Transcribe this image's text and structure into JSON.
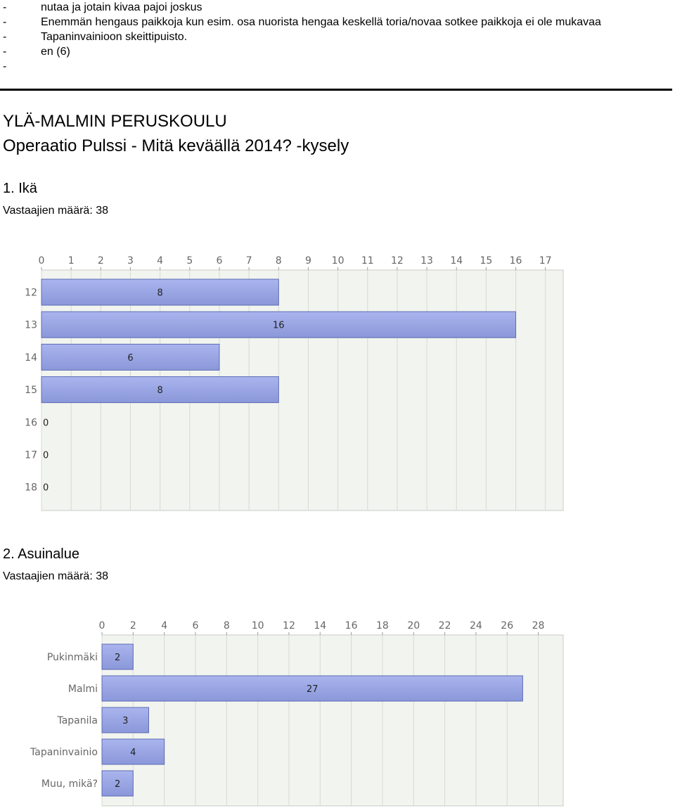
{
  "bullets": [
    {
      "dash": "-",
      "text": "nutaa ja jotain kivaa pajoi joskus"
    },
    {
      "dash": "-",
      "text": "Enemmän hengaus paikkoja kun esim. osa nuorista hengaa keskellä toria/novaa sotkee paikkoja ei ole mukavaa"
    },
    {
      "dash": "-",
      "text": "Tapaninvainioon skeittipuisto."
    },
    {
      "dash": "-",
      "text": "en (6)"
    },
    {
      "dash": "-",
      "text": ""
    }
  ],
  "school_name": "YLÄ-MALMIN PERUSKOULU",
  "survey_title": "Operaatio Pulssi - Mitä keväällä 2014? -kysely",
  "questions": [
    {
      "title": "1. Ikä",
      "respondents": "Vastaajien määrä: 38"
    },
    {
      "title": "2. Asuinalue",
      "respondents": "Vastaajien määrä: 38"
    }
  ],
  "colors": {
    "bar_fill": "#8a97d9",
    "bar_top": "#aab5ee",
    "bar_edge": "#5d6bb4",
    "plot_bg": "#f2f5ef",
    "grid": "#d6dad2"
  },
  "chart_data": [
    {
      "type": "bar",
      "orientation": "horizontal",
      "categories": [
        "12",
        "13",
        "14",
        "15",
        "16",
        "17",
        "18"
      ],
      "values": [
        8,
        16,
        6,
        8,
        0,
        0,
        0
      ],
      "xlim": [
        0,
        17.6
      ],
      "xticks": [
        0,
        1,
        2,
        3,
        4,
        5,
        6,
        7,
        8,
        9,
        10,
        11,
        12,
        13,
        14,
        15,
        16,
        17
      ],
      "grid": true,
      "title": "",
      "xlabel": "",
      "ylabel": ""
    },
    {
      "type": "bar",
      "orientation": "horizontal",
      "categories": [
        "Pukinmäki",
        "Malmi",
        "Tapanila",
        "Tapaninvainio",
        "Muu, mikä?"
      ],
      "values": [
        2,
        27,
        3,
        4,
        2
      ],
      "xlim": [
        0,
        29.6
      ],
      "xticks": [
        0,
        2,
        4,
        6,
        8,
        10,
        12,
        14,
        16,
        18,
        20,
        22,
        24,
        26,
        28
      ],
      "grid": true,
      "title": "",
      "xlabel": "",
      "ylabel": ""
    }
  ]
}
